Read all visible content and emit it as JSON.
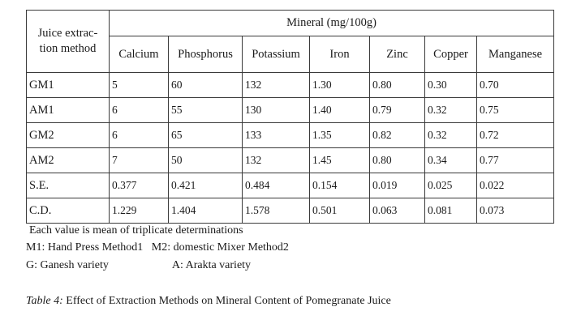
{
  "table": {
    "method_header_line1": "Juice extrac-",
    "method_header_line2": "tion method",
    "group_header": "Mineral (mg/100g)",
    "columns": [
      "Calcium",
      "Phosphorus",
      "Potassium",
      "Iron",
      "Zinc",
      "Copper",
      "Manganese"
    ],
    "rows": [
      {
        "label": "GM1",
        "values": [
          "5",
          "60",
          "132",
          "1.30",
          "0.80",
          "0.30",
          "0.70"
        ]
      },
      {
        "label": "AM1",
        "values": [
          "6",
          "55",
          "130",
          "1.40",
          "0.79",
          "0.32",
          "0.75"
        ]
      },
      {
        "label": "GM2",
        "values": [
          "6",
          "65",
          "133",
          "1.35",
          "0.82",
          "0.32",
          "0.72"
        ]
      },
      {
        "label": "AM2",
        "values": [
          "7",
          "50",
          "132",
          "1.45",
          "0.80",
          "0.34",
          "0.77"
        ]
      },
      {
        "label": "S.E.",
        "values": [
          "0.377",
          "0.421",
          "0.484",
          "0.154",
          "0.019",
          "0.025",
          "0.022"
        ]
      },
      {
        "label": "C.D.",
        "values": [
          "1.229",
          "1.404",
          "1.578",
          "0.501",
          "0.063",
          "0.081",
          "0.073"
        ]
      }
    ]
  },
  "notes": {
    "line1": "Each value is mean of triplicate determinations",
    "line2": "M1: Hand Press Method1   M2: domestic Mixer Method2",
    "line3_left": "G: Ganesh variety",
    "line3_right": "A: Arakta variety"
  },
  "caption": {
    "lead": "Table 4:",
    "text": " Effect of Extraction Methods on Mineral Content of Pomegranate Juice"
  }
}
